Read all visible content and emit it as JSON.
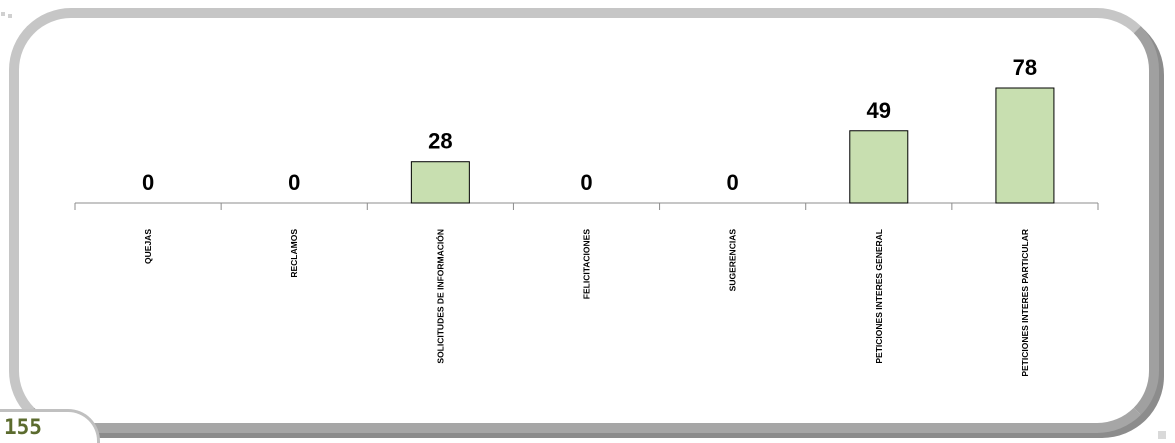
{
  "page": {
    "number": "155"
  },
  "colors": {
    "bar_fill": "#c8dfb0",
    "frame": "#c6c6c6",
    "page_number": "#5b6b2e"
  },
  "chart_data": {
    "type": "bar",
    "categories": [
      "QUEJAS",
      "RECLAMOS",
      "SOLICITUDES DE INFORMACIÓN",
      "FELICITACIONES",
      "SUGERENCIAS",
      "PETICIONES INTERES GENERAL",
      "PETICIONES INTERES PARTICULAR"
    ],
    "values": [
      0,
      0,
      28,
      0,
      0,
      49,
      78
    ],
    "data_labels": [
      "0",
      "0",
      "28",
      "0",
      "0",
      "49",
      "78"
    ],
    "title": "",
    "xlabel": "",
    "ylabel": "",
    "ylim": [
      0,
      78
    ],
    "grid": false,
    "legend": "none"
  }
}
